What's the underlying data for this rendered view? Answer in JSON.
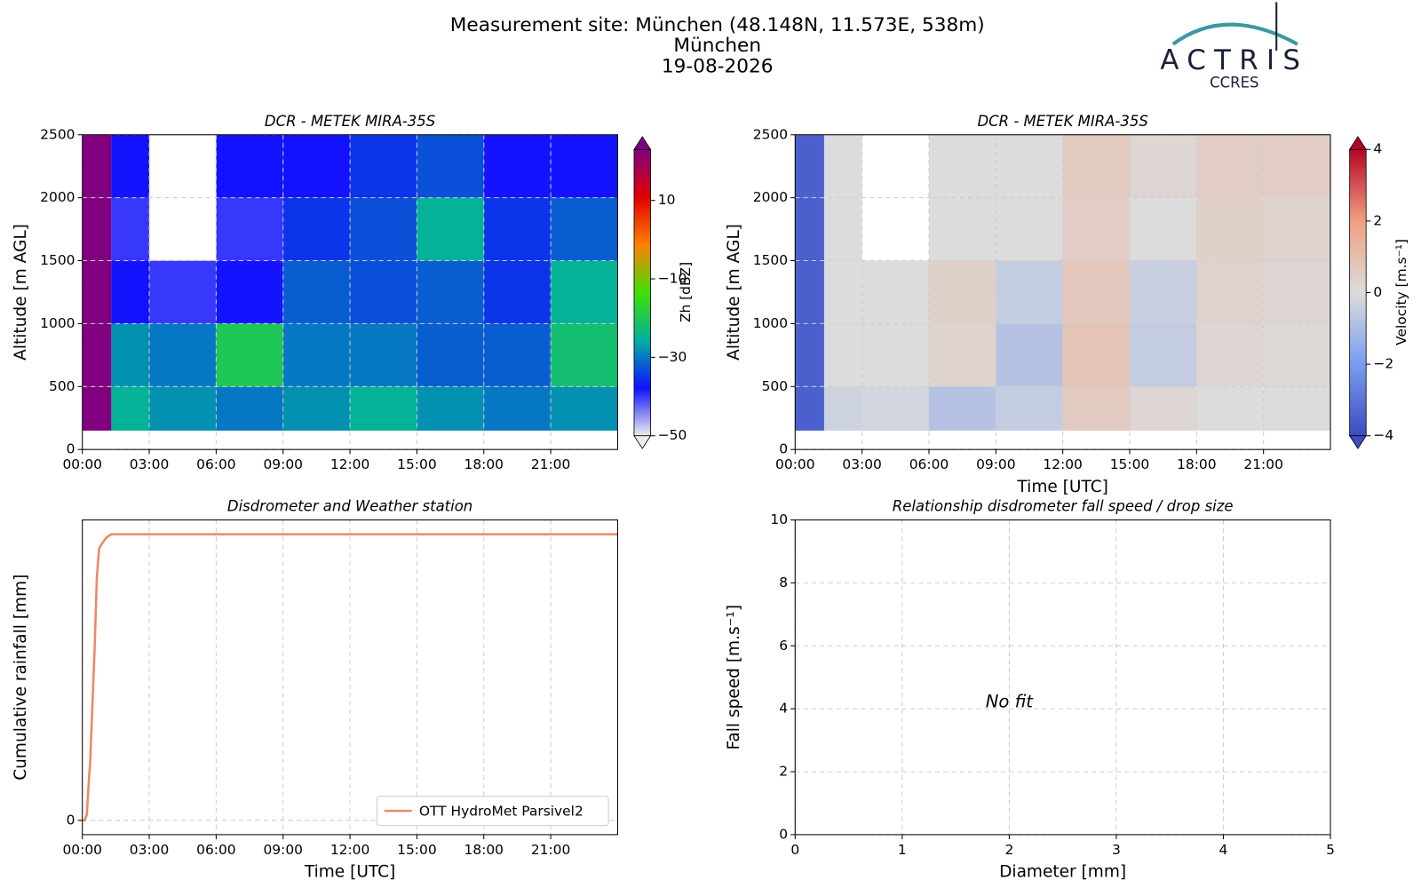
{
  "header": {
    "title": "Measurement site: München (48.148N, 11.573E, 538m)",
    "subtitle": "München",
    "date": "19-08-2026"
  },
  "logo": {
    "name": "ACTRIS",
    "sub": "CCRES"
  },
  "chart_data": [
    {
      "type": "heatmap",
      "title": "DCR - METEK MIRA-35S",
      "ylabel": "Altitude [m AGL]",
      "xbins": [
        0,
        1.3,
        3,
        6,
        9,
        12,
        15,
        18,
        21,
        24
      ],
      "ybins": [
        150,
        500,
        1000,
        1500,
        2000,
        2500
      ],
      "z": [
        [
          30,
          -25,
          -28,
          -30,
          -28,
          -25,
          -28,
          -30,
          -28
        ],
        [
          30,
          -28,
          -30,
          -20,
          -30,
          -30,
          -32,
          -32,
          -22
        ],
        [
          30,
          -38,
          -40,
          -38,
          -32,
          -33,
          -32,
          -35,
          -25
        ],
        [
          30,
          -40,
          null,
          -40,
          -35,
          -33,
          -25,
          -35,
          -32
        ],
        [
          30,
          -38,
          null,
          -38,
          -38,
          -35,
          -33,
          -38,
          -38
        ]
      ],
      "xlim": [
        0,
        24
      ],
      "ylim": [
        0,
        2500
      ],
      "xticks": [
        {
          "value": 0,
          "label": "00:00"
        },
        {
          "value": 3,
          "label": "03:00"
        },
        {
          "value": 6,
          "label": "06:00"
        },
        {
          "value": 9,
          "label": "09:00"
        },
        {
          "value": 12,
          "label": "12:00"
        },
        {
          "value": 15,
          "label": "15:00"
        },
        {
          "value": 18,
          "label": "18:00"
        },
        {
          "value": 21,
          "label": "21:00"
        }
      ],
      "yticks": [
        0,
        500,
        1000,
        1500,
        2000,
        2500
      ],
      "grid": true,
      "colorbar": {
        "label": "Zh [dBZ]",
        "lim": [
          -50,
          23
        ],
        "ticks": [
          10,
          {
            "value": -10,
            "label": "−10"
          },
          {
            "value": -30,
            "label": "−30"
          },
          {
            "value": -50,
            "label": "−50"
          }
        ],
        "colormap": [
          "#eeeeee",
          "#1010ff",
          "#00b0a0",
          "#40e000",
          "#ff8000",
          "#e00000",
          "#800080"
        ]
      }
    },
    {
      "type": "heatmap",
      "title": "DCR - METEK MIRA-35S",
      "ylabel": "Altitude [m AGL]",
      "xlabel": "Time [UTC]",
      "xbins": [
        0,
        1.3,
        3,
        6,
        9,
        12,
        15,
        18,
        21,
        24
      ],
      "ybins": [
        150,
        500,
        1000,
        1500,
        2000,
        2500
      ],
      "z": [
        [
          -3.5,
          -0.3,
          -0.2,
          -0.8,
          -0.5,
          0.6,
          0.2,
          0,
          0
        ],
        [
          -3.5,
          0,
          0,
          0.3,
          -0.8,
          0.8,
          -0.5,
          0.2,
          0.1
        ],
        [
          -3.5,
          0,
          0,
          0.4,
          -0.5,
          0.7,
          -0.4,
          0.3,
          0.2
        ],
        [
          -3.5,
          0,
          null,
          0,
          0,
          0.5,
          0,
          0.4,
          0.3
        ],
        [
          -3.5,
          0,
          null,
          0,
          0,
          0.6,
          0.2,
          0.5,
          0.5
        ]
      ],
      "xlim": [
        0,
        24
      ],
      "ylim": [
        0,
        2500
      ],
      "xticks": [
        {
          "value": 0,
          "label": "00:00"
        },
        {
          "value": 3,
          "label": "03:00"
        },
        {
          "value": 6,
          "label": "06:00"
        },
        {
          "value": 9,
          "label": "09:00"
        },
        {
          "value": 12,
          "label": "12:00"
        },
        {
          "value": 15,
          "label": "15:00"
        },
        {
          "value": 18,
          "label": "18:00"
        },
        {
          "value": 21,
          "label": "21:00"
        }
      ],
      "yticks": [
        0,
        500,
        1000,
        1500,
        2000,
        2500
      ],
      "grid": true,
      "colorbar": {
        "label": "Velocity [m.s⁻¹]",
        "lim": [
          -4,
          4
        ],
        "ticks": [
          4,
          2,
          0,
          {
            "value": -2,
            "label": "−2"
          },
          {
            "value": -4,
            "label": "−4"
          }
        ],
        "colormap": [
          "#3b4cc0",
          "#7a9cf0",
          "#dcdcdc",
          "#f0a080",
          "#b40426"
        ]
      }
    },
    {
      "type": "line",
      "title": "Disdrometer and Weather station",
      "ylabel": "Cumulative rainfall [mm]",
      "xlabel": "Time [UTC]",
      "x": [
        0,
        0.1,
        0.2,
        0.3,
        0.35,
        0.45,
        0.55,
        0.65,
        0.75,
        0.9,
        1.1,
        1.3,
        24
      ],
      "series": [
        {
          "name": "OTT HydroMet Parsivel2",
          "color": "#ee8866",
          "values": [
            0,
            0,
            0.02,
            0.15,
            0.2,
            0.4,
            0.6,
            0.85,
            0.95,
            0.97,
            0.99,
            1.0,
            1.0
          ]
        }
      ],
      "xlim": [
        0,
        24
      ],
      "ylim": [
        -0.05,
        1.05
      ],
      "xticks": [
        {
          "value": 0,
          "label": "00:00"
        },
        {
          "value": 3,
          "label": "03:00"
        },
        {
          "value": 6,
          "label": "06:00"
        },
        {
          "value": 9,
          "label": "09:00"
        },
        {
          "value": 12,
          "label": "12:00"
        },
        {
          "value": 15,
          "label": "15:00"
        },
        {
          "value": 18,
          "label": "18:00"
        },
        {
          "value": 21,
          "label": "21:00"
        }
      ],
      "yticks": [
        0
      ],
      "grid": true,
      "legend": "lower right"
    },
    {
      "type": "scatter",
      "title": "Relationship disdrometer fall speed / drop size",
      "ylabel": "Fall speed [m.s⁻¹]",
      "xlabel": "Diameter [mm]",
      "x": [],
      "values": [],
      "annotation": "No fit",
      "xlim": [
        0,
        5
      ],
      "ylim": [
        0,
        10
      ],
      "xticks": [
        0,
        1,
        2,
        3,
        4,
        5
      ],
      "yticks": [
        0,
        2,
        4,
        6,
        8,
        10
      ],
      "grid": true
    }
  ]
}
